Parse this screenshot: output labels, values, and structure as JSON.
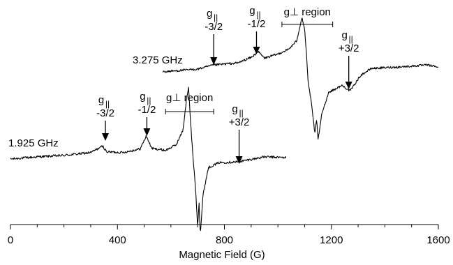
{
  "chart_data": {
    "type": "line",
    "xlabel": "Magnetic Field (G)",
    "xlim": [
      0,
      1600
    ],
    "x_ticks": [
      "0",
      "400",
      "800",
      "1200",
      "1600"
    ],
    "x_minor_tick_step": 100,
    "ylabel": "",
    "y_axis_shown": false,
    "grid": false,
    "series": [
      {
        "name": "1.925 GHz",
        "x_range": [
          0,
          1030
        ],
        "baseline_level": 0.0,
        "shape_points": [
          [
            0,
            0
          ],
          [
            100,
            3
          ],
          [
            200,
            5
          ],
          [
            300,
            9
          ],
          [
            345,
            18
          ],
          [
            360,
            10
          ],
          [
            420,
            9
          ],
          [
            485,
            14
          ],
          [
            508,
            32
          ],
          [
            528,
            15
          ],
          [
            580,
            12
          ],
          [
            620,
            20
          ],
          [
            645,
            40
          ],
          [
            658,
            82
          ],
          [
            666,
            100
          ],
          [
            672,
            60
          ],
          [
            681,
            10
          ],
          [
            692,
            -40
          ],
          [
            700,
            -95
          ],
          [
            705,
            -60
          ],
          [
            710,
            -105
          ],
          [
            720,
            -50
          ],
          [
            740,
            -12
          ],
          [
            780,
            -5
          ],
          [
            850,
            -4
          ],
          [
            950,
            3
          ],
          [
            1030,
            2
          ]
        ]
      },
      {
        "name": "3.275 GHz",
        "x_range": [
          570,
          1600
        ],
        "baseline_level": 0.0,
        "shape_points": [
          [
            570,
            0
          ],
          [
            700,
            4
          ],
          [
            760,
            10
          ],
          [
            850,
            13
          ],
          [
            905,
            22
          ],
          [
            925,
            30
          ],
          [
            950,
            20
          ],
          [
            1000,
            26
          ],
          [
            1040,
            33
          ],
          [
            1070,
            45
          ],
          [
            1090,
            80
          ],
          [
            1100,
            62
          ],
          [
            1108,
            20
          ],
          [
            1112,
            -12
          ],
          [
            1125,
            -45
          ],
          [
            1138,
            -90
          ],
          [
            1145,
            -70
          ],
          [
            1150,
            -100
          ],
          [
            1165,
            -60
          ],
          [
            1190,
            -30
          ],
          [
            1240,
            -20
          ],
          [
            1270,
            -28
          ],
          [
            1310,
            -5
          ],
          [
            1350,
            5
          ],
          [
            1450,
            7
          ],
          [
            1560,
            10
          ],
          [
            1600,
            7
          ]
        ]
      }
    ],
    "annotations": [
      {
        "series": "1.925 GHz",
        "text": [
          "g||",
          "-3/2"
        ],
        "x": 355
      },
      {
        "series": "1.925 GHz",
        "text": [
          "g||",
          "-1/2"
        ],
        "x": 510
      },
      {
        "series": "1.925 GHz",
        "text": [
          "g||",
          "+3/2"
        ],
        "x": 855
      },
      {
        "series": "1.925 GHz",
        "text": "g⊥ region",
        "x_range": [
          580,
          760
        ]
      },
      {
        "series": "3.275 GHz",
        "text": [
          "g||",
          "-3/2"
        ],
        "x": 760
      },
      {
        "series": "3.275 GHz",
        "text": [
          "g||",
          "-1/2"
        ],
        "x": 920
      },
      {
        "series": "3.275 GHz",
        "text": [
          "g||",
          "+3/2"
        ],
        "x": 1265
      },
      {
        "series": "3.275 GHz",
        "text": "g⊥ region",
        "x_range": [
          1015,
          1205
        ]
      }
    ]
  }
}
